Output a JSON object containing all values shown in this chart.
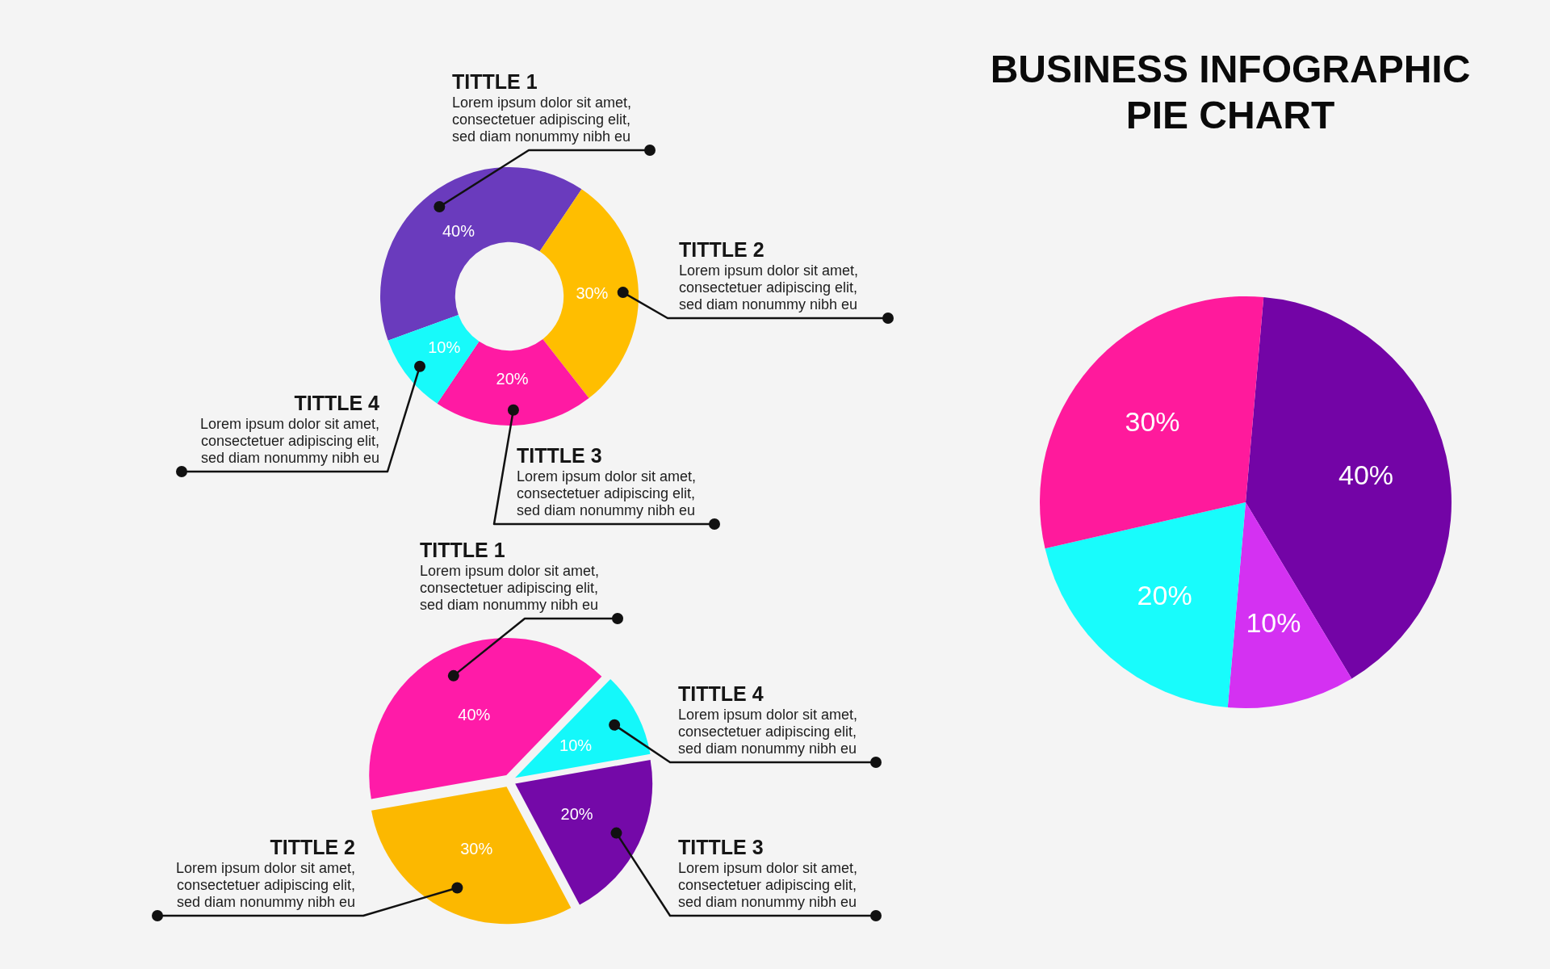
{
  "chart_data": [
    {
      "type": "donut",
      "categories": [
        "TITTLE 1",
        "TITTLE 2",
        "TITTLE 3",
        "TITTLE 4"
      ],
      "values": [
        40,
        30,
        20,
        10
      ],
      "colors": [
        "#6a3bbd",
        "#ffbe00",
        "#ff1aa3",
        "#17fafa"
      ],
      "value_labels": [
        "40%",
        "30%",
        "20%",
        "10%"
      ],
      "annotations": [
        "Lorem ipsum dolor sit amet,\nconsectetuer adipiscing elit,\nsed diam nonummy nibh eu",
        "Lorem ipsum dolor sit amet,\nconsectetuer adipiscing elit,\nsed diam nonummy nibh eu",
        "Lorem ipsum dolor sit amet,\nconsectetuer adipiscing elit,\nsed diam nonummy nibh eu",
        "Lorem ipsum dolor sit amet,\nconsectetuer adipiscing elit,\nsed diam nonummy nibh eu"
      ]
    },
    {
      "type": "pie",
      "title": "BUSINESS INFOGRAPHIC\nPIE CHART",
      "categories": [
        null,
        null,
        null,
        null
      ],
      "values": [
        40,
        10,
        20,
        30
      ],
      "colors": [
        "#7304a6",
        "#d431f2",
        "#18fcfc",
        "#ff1a9c"
      ],
      "value_labels": [
        "40%",
        "10%",
        "20%",
        "30%"
      ]
    },
    {
      "type": "pie",
      "categories": [
        "TITTLE 1",
        "TITTLE 4",
        "TITTLE 3",
        "TITTLE 2"
      ],
      "values": [
        40,
        10,
        20,
        30
      ],
      "colors": [
        "#ff1ba8",
        "#14f8fa",
        "#7409a8",
        "#fcb800"
      ],
      "value_labels": [
        "40%",
        "10%",
        "20%",
        "30%"
      ],
      "annotations": [
        "Lorem ipsum dolor sit amet,\nconsectetuer adipiscing elit,\nsed diam nonummy nibh eu",
        "Lorem ipsum dolor sit amet,\nconsectetuer adipiscing elit,\nsed diam nonummy nibh eu",
        "Lorem ipsum dolor sit amet,\nconsectetuer adipiscing elit,\nsed diam nonummy nibh eu",
        "Lorem ipsum dolor sit amet,\nconsectetuer adipiscing elit,\nsed diam nonummy nibh eu"
      ]
    }
  ]
}
